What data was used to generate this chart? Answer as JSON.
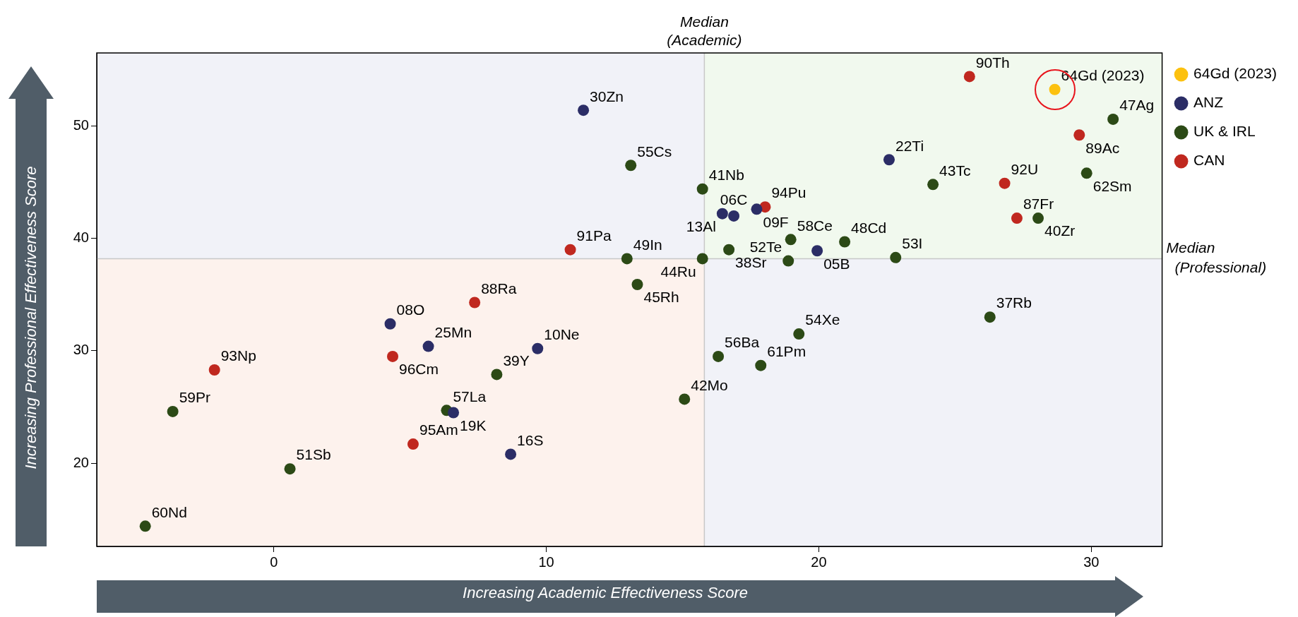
{
  "chart_data": {
    "type": "scatter",
    "xlabel": "Increasing Academic Effectiveness Score",
    "ylabel": "Increasing Professional Effectiveness Score",
    "xlim": [
      -6.5,
      32.6
    ],
    "ylim": [
      12.6,
      56.5
    ],
    "xticks": [
      0,
      10,
      20,
      30
    ],
    "yticks": [
      20,
      30,
      40,
      50
    ],
    "grid": false,
    "legend": "top right",
    "marker": "circle",
    "series": [
      {
        "name": "64Gd (2023)",
        "color": "#fcc10f",
        "x": [
          28.66
        ],
        "values": [
          53.25
        ]
      },
      {
        "name": "ANZ",
        "color": "#2b2d66",
        "x": [
          11.36,
          16.46,
          16.88,
          17.72,
          22.58,
          19.94,
          4.27,
          5.67,
          9.68,
          6.59,
          8.69
        ],
        "values": [
          51.4,
          42.2,
          42.0,
          42.6,
          47.0,
          38.9,
          32.4,
          30.4,
          30.2,
          24.5,
          20.8
        ]
      },
      {
        "name": "UK & IRL",
        "color": "#2c4a16",
        "x": [
          30.8,
          29.83,
          24.19,
          28.05,
          15.73,
          13.1,
          16.7,
          18.97,
          15.73,
          12.96,
          18.88,
          20.95,
          22.82,
          19.27,
          26.28,
          16.31,
          17.87,
          13.34,
          8.18,
          6.34,
          15.07,
          -3.71,
          0.59,
          -4.72
        ],
        "values": [
          50.6,
          45.8,
          44.8,
          41.8,
          44.4,
          46.5,
          39.0,
          39.9,
          38.2,
          38.2,
          38.0,
          39.7,
          38.3,
          31.5,
          33.0,
          29.5,
          28.7,
          35.9,
          27.9,
          24.7,
          25.7,
          24.6,
          19.5,
          14.4
        ]
      },
      {
        "name": "CAN",
        "color": "#c0281f",
        "x": [
          25.53,
          29.56,
          26.82,
          27.27,
          18.03,
          10.88,
          7.37,
          4.36,
          -2.18,
          5.11
        ],
        "values": [
          54.4,
          49.2,
          44.9,
          41.8,
          42.8,
          39.0,
          34.3,
          29.5,
          28.3,
          21.7
        ]
      }
    ],
    "ref_lines": [
      {
        "axis": "x",
        "value": 15.8,
        "label": "Median (Academic)",
        "color": "#c8c8c8"
      },
      {
        "axis": "y",
        "value": 38.2,
        "label": "Median (Professional)",
        "color": "#c8c8c8"
      }
    ],
    "annotations": [
      {
        "text": "64Gd (2023)",
        "x": 28.66,
        "y": 53.25
      },
      {
        "text": "90Th",
        "x": 25.53,
        "y": 54.4
      },
      {
        "text": "47Ag",
        "x": 30.8,
        "y": 50.6
      },
      {
        "text": "89Ac",
        "x": 29.56,
        "y": 49.2
      },
      {
        "text": "30Zn",
        "x": 11.36,
        "y": 51.4
      },
      {
        "text": "22Ti",
        "x": 22.58,
        "y": 47.0
      },
      {
        "text": "55Cs",
        "x": 13.1,
        "y": 46.5
      },
      {
        "text": "62Sm",
        "x": 29.83,
        "y": 45.8
      },
      {
        "text": "92U",
        "x": 26.82,
        "y": 44.9
      },
      {
        "text": "43Tc",
        "x": 24.19,
        "y": 44.8
      },
      {
        "text": "41Nb",
        "x": 15.73,
        "y": 44.4
      },
      {
        "text": "94Pu",
        "x": 18.03,
        "y": 42.8
      },
      {
        "text": "09F",
        "x": 17.72,
        "y": 42.6
      },
      {
        "text": "13Al",
        "x": 16.46,
        "y": 42.2
      },
      {
        "text": "06C",
        "x": 16.88,
        "y": 42.0
      },
      {
        "text": "87Fr",
        "x": 27.27,
        "y": 41.8
      },
      {
        "text": "40Zr",
        "x": 28.05,
        "y": 41.8
      },
      {
        "text": "58Ce",
        "x": 18.97,
        "y": 39.9
      },
      {
        "text": "48Cd",
        "x": 20.95,
        "y": 39.7
      },
      {
        "text": "38Sr",
        "x": 16.7,
        "y": 39.0
      },
      {
        "text": "91Pa",
        "x": 10.88,
        "y": 39.0
      },
      {
        "text": "05B",
        "x": 19.94,
        "y": 38.9
      },
      {
        "text": "53I",
        "x": 22.82,
        "y": 38.3
      },
      {
        "text": "49In",
        "x": 12.96,
        "y": 38.2
      },
      {
        "text": "44Ru",
        "x": 15.73,
        "y": 38.2
      },
      {
        "text": "52Te",
        "x": 18.88,
        "y": 38.0
      },
      {
        "text": "45Rh",
        "x": 13.34,
        "y": 35.9
      },
      {
        "text": "88Ra",
        "x": 7.37,
        "y": 34.3
      },
      {
        "text": "37Rb",
        "x": 26.28,
        "y": 33.0
      },
      {
        "text": "08O",
        "x": 4.27,
        "y": 32.4
      },
      {
        "text": "54Xe",
        "x": 19.27,
        "y": 31.5
      },
      {
        "text": "25Mn",
        "x": 5.67,
        "y": 30.4
      },
      {
        "text": "10Ne",
        "x": 9.68,
        "y": 30.2
      },
      {
        "text": "56Ba",
        "x": 16.31,
        "y": 29.5
      },
      {
        "text": "96Cm",
        "x": 4.36,
        "y": 29.5
      },
      {
        "text": "61Pm",
        "x": 17.87,
        "y": 28.7
      },
      {
        "text": "93Np",
        "x": -2.18,
        "y": 28.3
      },
      {
        "text": "39Y",
        "x": 8.18,
        "y": 27.9
      },
      {
        "text": "42Mo",
        "x": 15.07,
        "y": 25.7
      },
      {
        "text": "57La",
        "x": 6.34,
        "y": 24.7
      },
      {
        "text": "59Pr",
        "x": -3.71,
        "y": 24.6
      },
      {
        "text": "19K",
        "x": 6.59,
        "y": 24.5
      },
      {
        "text": "95Am",
        "x": 5.11,
        "y": 21.7
      },
      {
        "text": "16S",
        "x": 8.69,
        "y": 20.8
      },
      {
        "text": "51Sb",
        "x": 0.59,
        "y": 19.5
      },
      {
        "text": "60Nd",
        "x": -4.72,
        "y": 14.4
      }
    ]
  }
}
